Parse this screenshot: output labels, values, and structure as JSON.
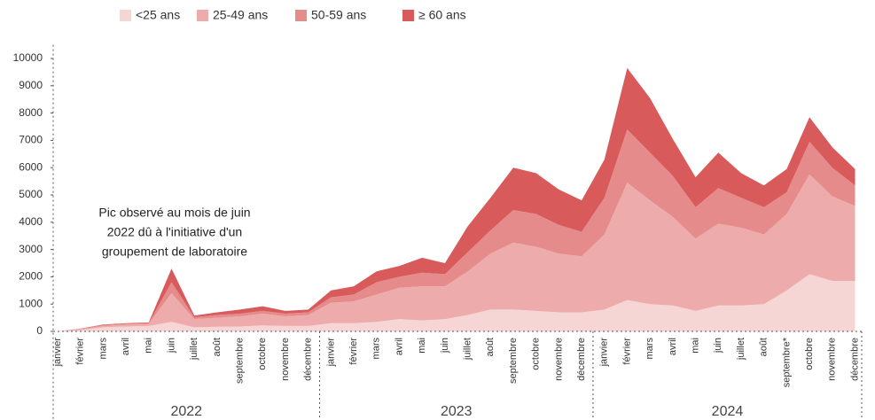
{
  "chart_data": {
    "type": "stacked_area",
    "categories": [
      "janvier",
      "février",
      "mars",
      "avril",
      "mai",
      "juin",
      "juillet",
      "août",
      "septembre",
      "octobre",
      "novembre",
      "décembre",
      "janvier",
      "février",
      "mars",
      "avril",
      "mai",
      "juin",
      "juillet",
      "août",
      "septembre",
      "octobre",
      "novembre",
      "décembre",
      "janvier",
      "février",
      "mars",
      "avril",
      "mai",
      "juin",
      "juillet",
      "août",
      "septembre*",
      "octobre",
      "novembre",
      "décembre"
    ],
    "years": [
      "2022",
      "2023",
      "2024"
    ],
    "series": [
      {
        "name": "<25 ans",
        "color": "#f6d5d5",
        "values": [
          0,
          50,
          150,
          180,
          200,
          350,
          150,
          170,
          180,
          220,
          200,
          200,
          300,
          300,
          350,
          450,
          400,
          450,
          600,
          800,
          800,
          750,
          700,
          700,
          800,
          1150,
          1000,
          950,
          750,
          950,
          950,
          1000,
          1500,
          2100,
          1850,
          1850
        ]
      },
      {
        "name": "25-49 ans",
        "color": "#eeabab",
        "values": [
          0,
          30,
          50,
          70,
          80,
          1050,
          300,
          330,
          370,
          430,
          350,
          400,
          750,
          800,
          1000,
          1150,
          1250,
          1200,
          1600,
          2050,
          2450,
          2350,
          2150,
          2050,
          2750,
          4300,
          3800,
          3250,
          2650,
          3000,
          2850,
          2550,
          2800,
          3650,
          3100,
          2750
        ]
      },
      {
        "name": "50-59 ans",
        "color": "#e58b8b",
        "values": [
          0,
          10,
          30,
          30,
          20,
          400,
          70,
          100,
          100,
          100,
          100,
          100,
          200,
          250,
          450,
          400,
          500,
          450,
          700,
          850,
          1200,
          1200,
          1050,
          900,
          1350,
          1950,
          1750,
          1500,
          1150,
          1300,
          1100,
          1000,
          800,
          1200,
          1050,
          750
        ]
      },
      {
        "name": "≥ 60 ans",
        "color": "#d95a5a",
        "values": [
          0,
          10,
          20,
          20,
          30,
          500,
          60,
          100,
          150,
          170,
          100,
          100,
          250,
          300,
          400,
          400,
          550,
          400,
          950,
          1200,
          1550,
          1500,
          1300,
          1150,
          1400,
          2250,
          2000,
          1350,
          1100,
          1300,
          900,
          800,
          850,
          900,
          750,
          600
        ]
      }
    ],
    "ylim": [
      0,
      10500
    ],
    "yticks": [
      0,
      1000,
      2000,
      3000,
      4000,
      5000,
      6000,
      7000,
      8000,
      9000,
      10000
    ],
    "annotation": [
      "Pic observé au mois de juin",
      "2022 dû à l'initiative d'un",
      "groupement de laboratoire"
    ]
  }
}
